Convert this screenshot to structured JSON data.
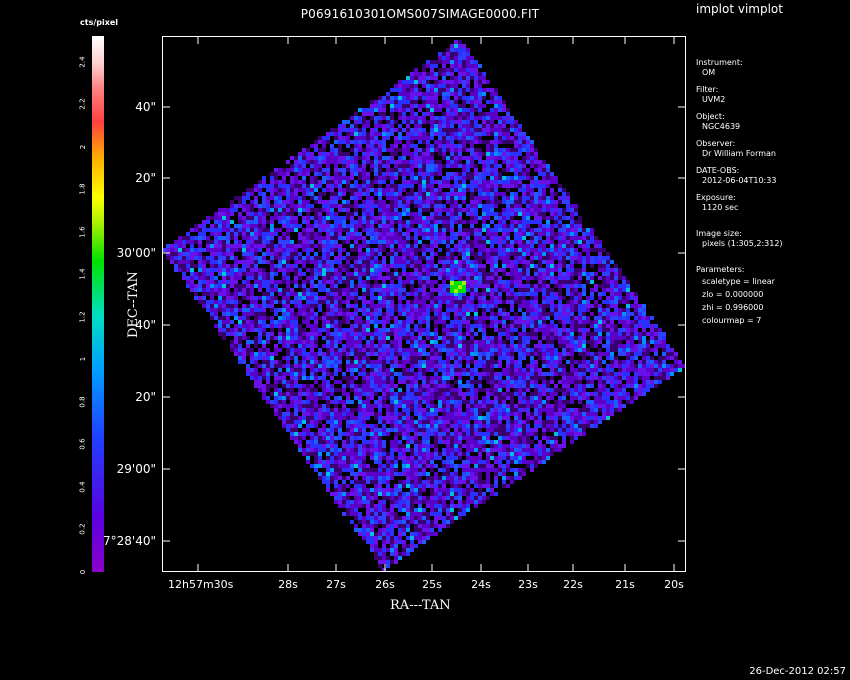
{
  "header": {
    "title": "P0691610301OMS007SIMAGE0000.FIT",
    "app_name": "implot vimplot"
  },
  "colorbar": {
    "label": "cts/pixel",
    "ticks": [
      "0",
      "0.2",
      "0.4",
      "0.6",
      "0.8",
      "1",
      "1.2",
      "1.4",
      "1.6",
      "1.8",
      "2",
      "2.2",
      "2.4"
    ]
  },
  "axes": {
    "xlabel": "RA---TAN",
    "ylabel": "DEC--TAN",
    "x_ticks": [
      "12h57m30s",
      "28s",
      "27s",
      "26s",
      "25s",
      "24s",
      "23s",
      "22s",
      "21s",
      "20s"
    ],
    "y_ticks": [
      "40\"",
      "20\"",
      "30'00\"",
      "40\"",
      "20\"",
      "29'00\"",
      "7°28'40\""
    ]
  },
  "info": {
    "instrument_label": "Instrument:",
    "instrument": "OM",
    "filter_label": "Filter:",
    "filter": "UVM2",
    "object_label": "Object:",
    "object": "NGC4639",
    "observer_label": "Observer:",
    "observer": "Dr William Forman",
    "date_label": "DATE-OBS:",
    "date": "2012-06-04T10:33",
    "exposure_label": "Exposure:",
    "exposure": "1120 sec",
    "image_size_label": "Image size:",
    "image_size": "pixels (1:305,2:312)",
    "parameters_label": "Parameters:",
    "scaletype": "scaletype = linear",
    "zlo": "zlo = 0.000000",
    "zhi": "zhi = 0.996000",
    "colourmap": "colourmap =   7"
  },
  "footer": {
    "timestamp": "26-Dec-2012 02:57"
  },
  "colors": {
    "background": "#000000",
    "low": "#5a00e0",
    "mid": "#2040ff",
    "high": "#00e000"
  }
}
